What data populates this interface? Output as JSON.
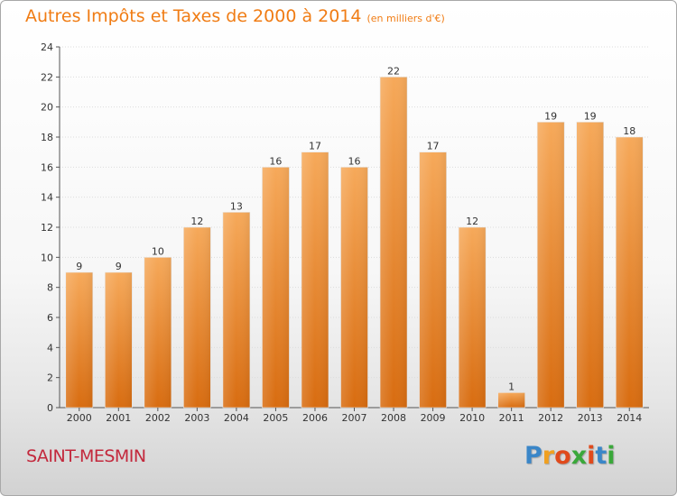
{
  "title": {
    "main": "Autres Impôts et Taxes de 2000 à 2014",
    "unit": "(en milliers d'€)"
  },
  "commune": "SAINT-MESMIN",
  "logo": {
    "text": "Proxiti",
    "letters": [
      "P",
      "r",
      "o",
      "x",
      "i",
      "t",
      "i"
    ],
    "colors": [
      "#3a86c8",
      "#f0a020",
      "#e04a1c",
      "#3aa83a",
      "#e04a1c",
      "#3a86c8",
      "#3aa83a"
    ]
  },
  "colors": {
    "title": "#f07c14",
    "bar_top": "#f6a95a",
    "bar_bottom": "#d86c10",
    "commune": "#c3283c"
  },
  "chart_data": {
    "type": "bar",
    "categories": [
      "2000",
      "2001",
      "2002",
      "2003",
      "2004",
      "2005",
      "2006",
      "2007",
      "2008",
      "2009",
      "2010",
      "2011",
      "2012",
      "2013",
      "2014"
    ],
    "values": [
      9,
      9,
      10,
      12,
      13,
      16,
      17,
      16,
      22,
      17,
      12,
      1,
      19,
      19,
      18
    ],
    "yticks": [
      0,
      2,
      4,
      6,
      8,
      10,
      12,
      14,
      16,
      18,
      20,
      22,
      24
    ],
    "ylim": [
      0,
      24
    ],
    "grid": true
  }
}
